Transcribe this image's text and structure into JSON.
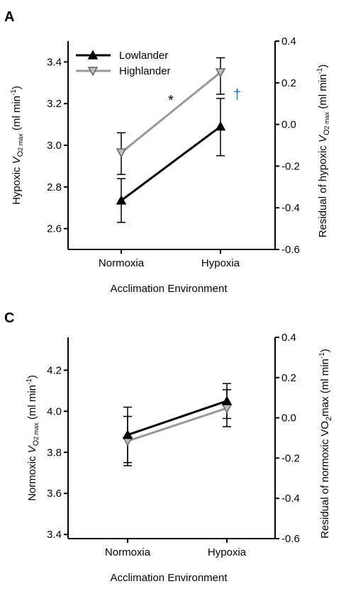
{
  "chart_data": [
    {
      "panel": "A",
      "type": "line",
      "categories": [
        "Normoxia",
        "Hypoxia"
      ],
      "xlabel": "Acclimation Environment",
      "ylabel": {
        "pre": "Hypoxic ",
        "v": "V",
        "sub": "O",
        "sub2": "2 max",
        "post": " (ml min",
        "sup": "-1",
        "end": ")"
      },
      "y2label": {
        "pre": "Residual of hypoxic ",
        "v": "V",
        "sub": "O",
        "sub2": "2 max",
        "post": " (ml min",
        "sup": "-1",
        "end": ")"
      },
      "ylim": [
        2.5,
        3.5
      ],
      "yticks": [
        "2.6",
        "2.8",
        "3.0",
        "3.2",
        "3.4"
      ],
      "y2lim": [
        -0.6,
        0.4
      ],
      "y2ticks": [
        "-0.6",
        "-0.4",
        "-0.2",
        "0.0",
        "0.2",
        "0.4"
      ],
      "legend": {
        "position": "top-left",
        "entries": [
          "Lowlander",
          "Highlander"
        ]
      },
      "series": [
        {
          "name": "Lowlander",
          "color": "#000000",
          "marker": "triangle-up",
          "values": [
            2.735,
            3.09
          ],
          "err_low": [
            2.63,
            2.95
          ],
          "err_high": [
            2.84,
            3.225
          ]
        },
        {
          "name": "Highlander",
          "color": "#999999",
          "marker": "triangle-down",
          "values": [
            2.965,
            3.35
          ],
          "err_low": [
            2.86,
            3.245
          ],
          "err_high": [
            3.06,
            3.42
          ]
        }
      ],
      "annotations": [
        "*",
        "†"
      ]
    },
    {
      "panel": "C",
      "type": "line",
      "categories": [
        "Normoxia",
        "Hypoxia"
      ],
      "xlabel": "Acclimation Environment",
      "ylabel": {
        "pre": "Normoxic ",
        "v": "V",
        "sub": "O",
        "sub2": "2 max",
        "post": " (ml min",
        "sup": "-1",
        "end": ")"
      },
      "y2label": {
        "pre": "Residual of normoxic VO",
        "v": "",
        "sub": "2",
        "sub2": "",
        "post": "max (ml min",
        "sup": "-1",
        "end": ")"
      },
      "ylim": [
        3.38,
        4.36
      ],
      "yticks": [
        "3.4",
        "3.6",
        "3.8",
        "4.0",
        "4.2"
      ],
      "y2lim": [
        -0.6,
        0.4
      ],
      "y2ticks": [
        "-0.6",
        "-0.4",
        "-0.2",
        "0.0",
        "0.2",
        "0.4"
      ],
      "series": [
        {
          "name": "Lowlander",
          "color": "#000000",
          "marker": "triangle-up",
          "values": [
            3.885,
            4.05
          ],
          "err_low": [
            3.75,
            3.965
          ],
          "err_high": [
            4.02,
            4.135
          ]
        },
        {
          "name": "Highlander",
          "color": "#999999",
          "marker": "triangle-down",
          "values": [
            3.855,
            4.015
          ],
          "err_low": [
            3.735,
            3.925
          ],
          "err_high": [
            3.975,
            4.105
          ]
        }
      ]
    }
  ]
}
